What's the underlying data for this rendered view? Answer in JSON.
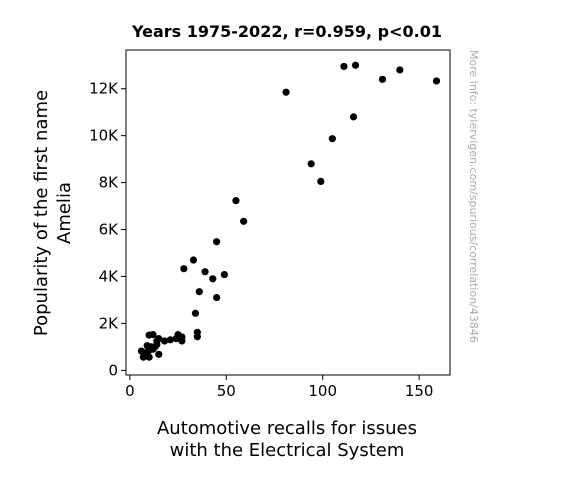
{
  "chart_data": {
    "type": "scatter",
    "title": "Years 1975-2022, r=0.959, p<0.01",
    "xlabel_lines": [
      "Automotive recalls for issues",
      "with the Electrical System"
    ],
    "ylabel_lines": [
      "Popularity of the first name",
      "Amelia"
    ],
    "xlim": [
      -2,
      166
    ],
    "ylim": [
      -200,
      13650
    ],
    "xticks": [
      {
        "value": 0,
        "label": "0"
      },
      {
        "value": 50,
        "label": "50"
      },
      {
        "value": 100,
        "label": "100"
      },
      {
        "value": 150,
        "label": "150"
      }
    ],
    "yticks": [
      {
        "value": 0,
        "label": "0"
      },
      {
        "value": 2000,
        "label": "2K"
      },
      {
        "value": 4000,
        "label": "4K"
      },
      {
        "value": 6000,
        "label": "6K"
      },
      {
        "value": 8000,
        "label": "8K"
      },
      {
        "value": 10000,
        "label": "10K"
      },
      {
        "value": 12000,
        "label": "12K"
      }
    ],
    "grid": false,
    "marker_color": "#000000",
    "points": [
      {
        "x": 6,
        "y": 820
      },
      {
        "x": 7,
        "y": 560
      },
      {
        "x": 8,
        "y": 700
      },
      {
        "x": 9,
        "y": 1050
      },
      {
        "x": 9,
        "y": 780
      },
      {
        "x": 10,
        "y": 560
      },
      {
        "x": 10,
        "y": 1500
      },
      {
        "x": 10,
        "y": 850
      },
      {
        "x": 11,
        "y": 1000
      },
      {
        "x": 12,
        "y": 1520
      },
      {
        "x": 12,
        "y": 900
      },
      {
        "x": 13,
        "y": 1000
      },
      {
        "x": 14,
        "y": 1250
      },
      {
        "x": 14,
        "y": 1100
      },
      {
        "x": 15,
        "y": 1350
      },
      {
        "x": 15,
        "y": 680
      },
      {
        "x": 18,
        "y": 1250
      },
      {
        "x": 21,
        "y": 1300
      },
      {
        "x": 24,
        "y": 1350
      },
      {
        "x": 25,
        "y": 1520
      },
      {
        "x": 25,
        "y": 1430
      },
      {
        "x": 27,
        "y": 1250
      },
      {
        "x": 27,
        "y": 1420
      },
      {
        "x": 28,
        "y": 4330
      },
      {
        "x": 33,
        "y": 4700
      },
      {
        "x": 34,
        "y": 2430
      },
      {
        "x": 35,
        "y": 1620
      },
      {
        "x": 35,
        "y": 1430
      },
      {
        "x": 36,
        "y": 3350
      },
      {
        "x": 39,
        "y": 4200
      },
      {
        "x": 43,
        "y": 3900
      },
      {
        "x": 45,
        "y": 5480
      },
      {
        "x": 45,
        "y": 3100
      },
      {
        "x": 49,
        "y": 4080
      },
      {
        "x": 55,
        "y": 7230
      },
      {
        "x": 59,
        "y": 6350
      },
      {
        "x": 81,
        "y": 11850
      },
      {
        "x": 94,
        "y": 8800
      },
      {
        "x": 99,
        "y": 8050
      },
      {
        "x": 105,
        "y": 9870
      },
      {
        "x": 111,
        "y": 12950
      },
      {
        "x": 116,
        "y": 10800
      },
      {
        "x": 117,
        "y": 13000
      },
      {
        "x": 131,
        "y": 12400
      },
      {
        "x": 140,
        "y": 12800
      },
      {
        "x": 159,
        "y": 12330
      }
    ]
  },
  "watermark": "More info: tylervigen.com/spurious/correlation/43846"
}
